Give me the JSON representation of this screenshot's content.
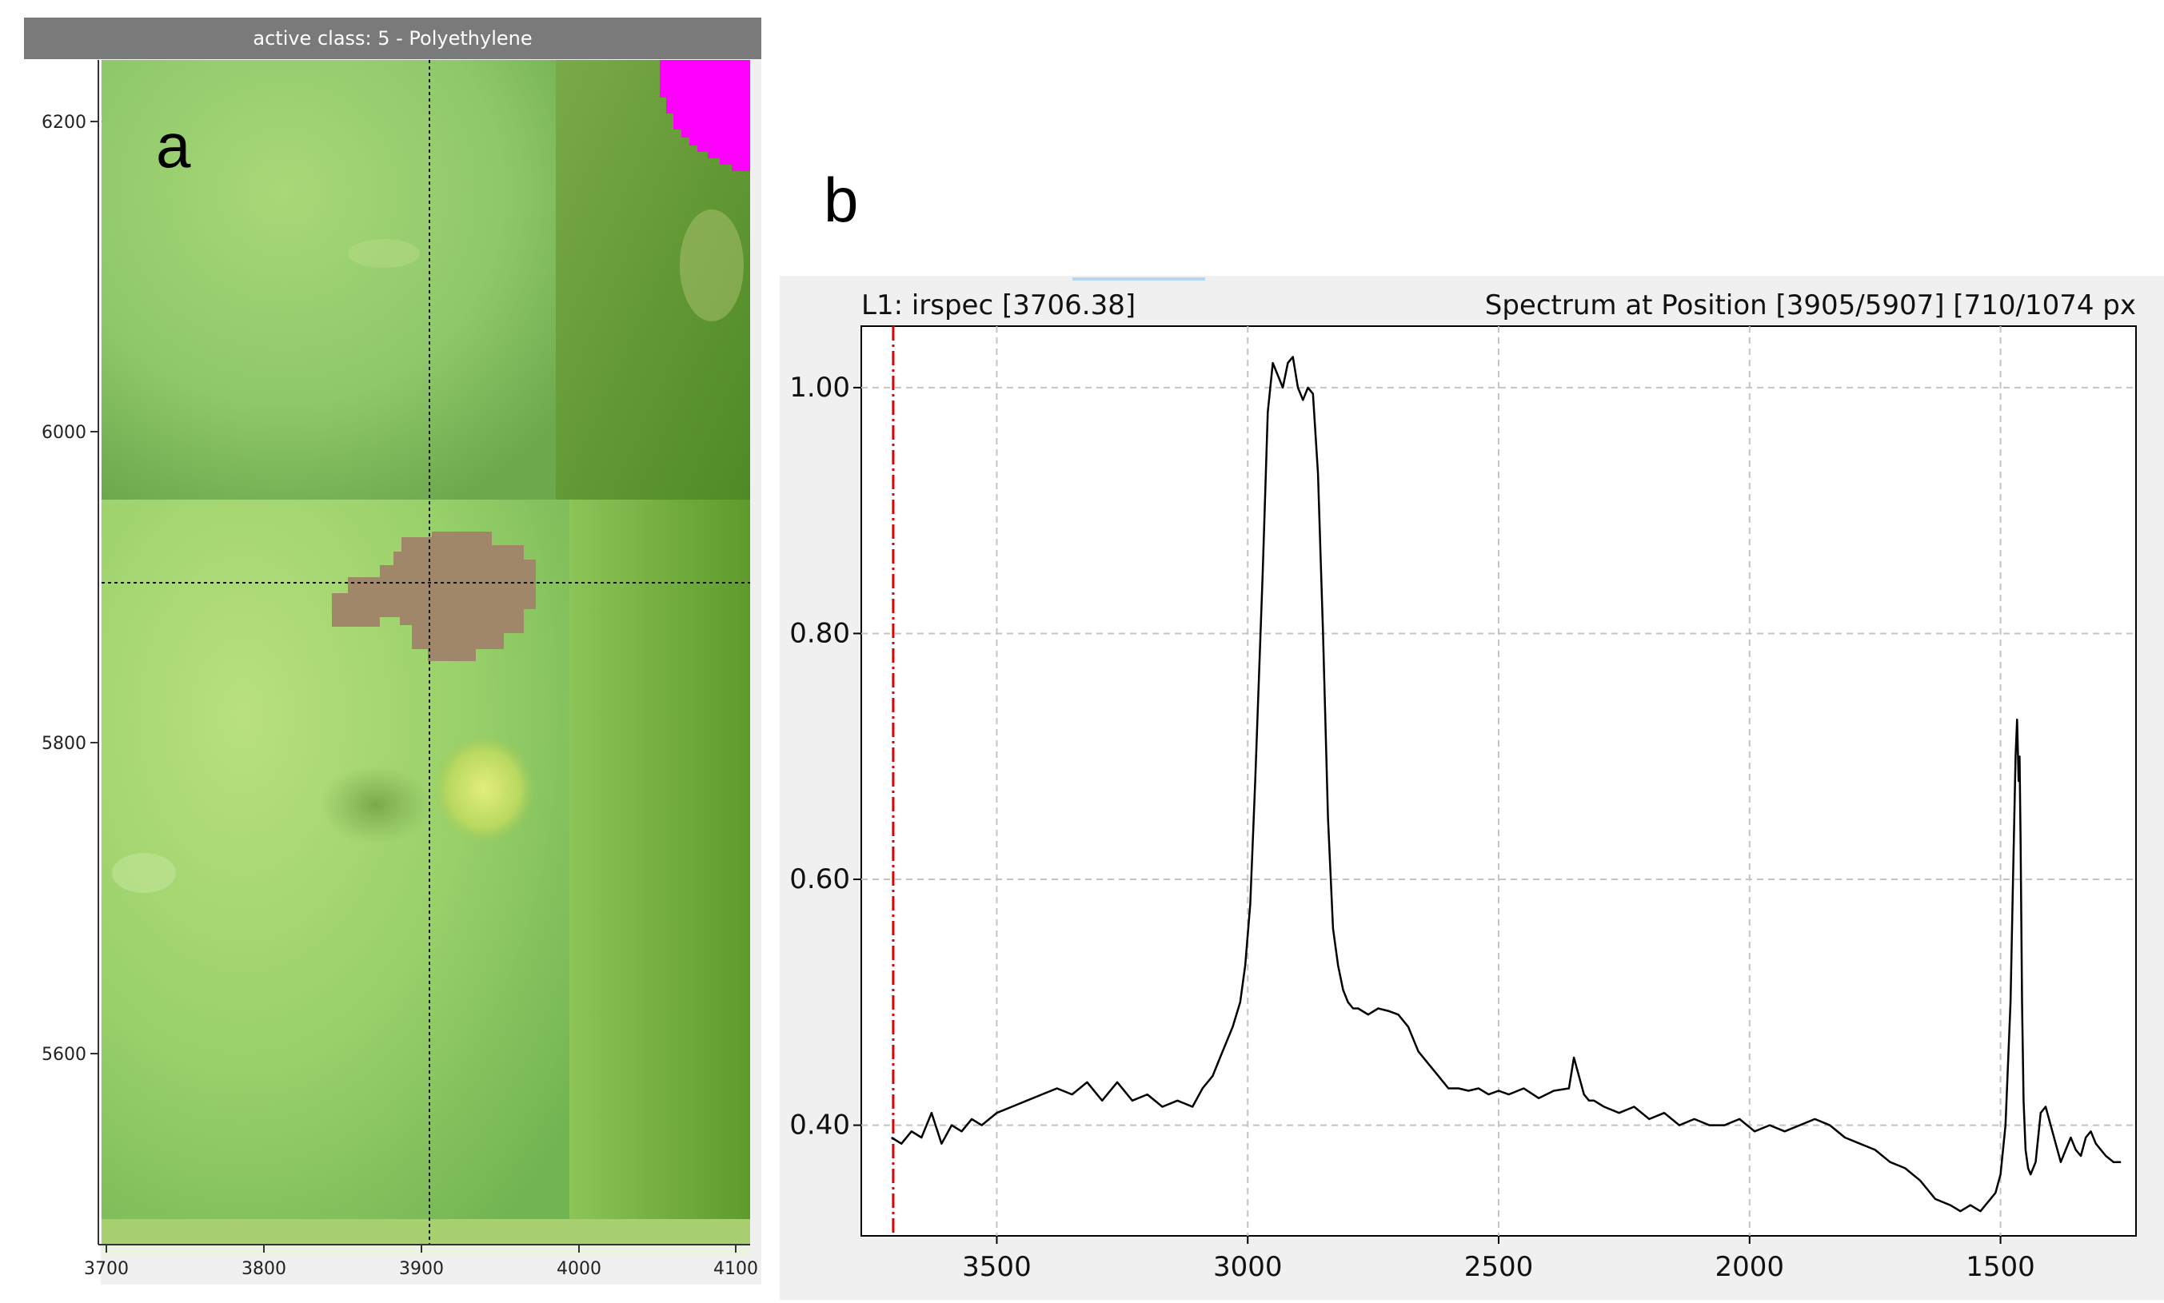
{
  "panel_a": {
    "label": "a",
    "title": "active class: 5 - Polyethylene",
    "y_ticks": [
      "6200",
      "6000",
      "5800",
      "5600"
    ],
    "x_ticks": [
      "3700",
      "3800",
      "3900",
      "4000",
      "4100"
    ],
    "crosshair": {
      "x": 3905,
      "y": 5907
    },
    "class_color": "#a0876a",
    "marker_color": "#ff00ff"
  },
  "panel_b": {
    "label": "b",
    "header_left": "L1: irspec [3706.38]",
    "header_right": "Spectrum at Position [3905/5907] [710/1074 px",
    "cursor_wavenumber": 3706.38,
    "cursor_color": "#e00000"
  },
  "chart_data": {
    "type": "line",
    "title": "Spectrum at Position [3905/5907] [710/1074 px",
    "xlabel": "",
    "ylabel": "",
    "xlim": [
      3770,
      1230
    ],
    "ylim": [
      0.31,
      1.05
    ],
    "x_ticks": [
      3500,
      3000,
      2500,
      2000,
      1500
    ],
    "y_ticks": [
      0.4,
      0.6,
      0.8,
      1.0
    ],
    "x_tick_labels": [
      "3500",
      "3000",
      "2500",
      "2000",
      "1500"
    ],
    "y_tick_labels": [
      "0.40",
      "0.60",
      "0.80",
      "1.00"
    ],
    "grid": true,
    "series": [
      {
        "name": "irspec",
        "x": [
          3710,
          3690,
          3670,
          3650,
          3630,
          3610,
          3590,
          3570,
          3550,
          3530,
          3500,
          3470,
          3440,
          3410,
          3380,
          3350,
          3320,
          3290,
          3260,
          3230,
          3200,
          3170,
          3140,
          3110,
          3090,
          3070,
          3050,
          3030,
          3015,
          3005,
          2995,
          2985,
          2970,
          2960,
          2950,
          2940,
          2930,
          2920,
          2910,
          2900,
          2890,
          2880,
          2870,
          2860,
          2850,
          2840,
          2830,
          2820,
          2810,
          2800,
          2790,
          2780,
          2760,
          2740,
          2720,
          2700,
          2680,
          2660,
          2640,
          2620,
          2600,
          2580,
          2560,
          2540,
          2520,
          2500,
          2480,
          2450,
          2420,
          2390,
          2360,
          2350,
          2340,
          2330,
          2320,
          2310,
          2290,
          2260,
          2230,
          2200,
          2170,
          2140,
          2110,
          2080,
          2050,
          2020,
          1990,
          1960,
          1930,
          1900,
          1870,
          1840,
          1810,
          1780,
          1750,
          1720,
          1690,
          1660,
          1630,
          1600,
          1580,
          1560,
          1540,
          1530,
          1520,
          1510,
          1500,
          1490,
          1480,
          1475,
          1470,
          1467,
          1464,
          1462,
          1460,
          1457,
          1454,
          1450,
          1445,
          1440,
          1430,
          1420,
          1410,
          1400,
          1390,
          1380,
          1370,
          1360,
          1350,
          1340,
          1330,
          1320,
          1310,
          1300,
          1290,
          1275,
          1260
        ],
        "values": [
          0.39,
          0.385,
          0.395,
          0.39,
          0.41,
          0.385,
          0.4,
          0.395,
          0.405,
          0.4,
          0.41,
          0.415,
          0.42,
          0.425,
          0.43,
          0.425,
          0.435,
          0.42,
          0.435,
          0.42,
          0.425,
          0.415,
          0.42,
          0.415,
          0.43,
          0.44,
          0.46,
          0.48,
          0.5,
          0.53,
          0.58,
          0.68,
          0.85,
          0.98,
          1.02,
          1.01,
          1.0,
          1.02,
          1.025,
          1.0,
          0.99,
          1.0,
          0.995,
          0.93,
          0.8,
          0.65,
          0.56,
          0.53,
          0.51,
          0.5,
          0.495,
          0.495,
          0.49,
          0.495,
          0.493,
          0.49,
          0.48,
          0.46,
          0.45,
          0.44,
          0.43,
          0.43,
          0.428,
          0.43,
          0.425,
          0.428,
          0.425,
          0.43,
          0.422,
          0.428,
          0.43,
          0.455,
          0.44,
          0.425,
          0.42,
          0.42,
          0.415,
          0.41,
          0.415,
          0.405,
          0.41,
          0.4,
          0.405,
          0.4,
          0.4,
          0.405,
          0.395,
          0.4,
          0.395,
          0.4,
          0.405,
          0.4,
          0.39,
          0.385,
          0.38,
          0.37,
          0.365,
          0.355,
          0.34,
          0.335,
          0.33,
          0.335,
          0.33,
          0.335,
          0.34,
          0.345,
          0.36,
          0.4,
          0.5,
          0.6,
          0.7,
          0.73,
          0.68,
          0.7,
          0.63,
          0.5,
          0.42,
          0.38,
          0.365,
          0.36,
          0.37,
          0.41,
          0.415,
          0.4,
          0.385,
          0.37,
          0.38,
          0.39,
          0.38,
          0.375,
          0.39,
          0.395,
          0.385,
          0.38,
          0.375,
          0.37,
          0.37
        ]
      }
    ]
  }
}
